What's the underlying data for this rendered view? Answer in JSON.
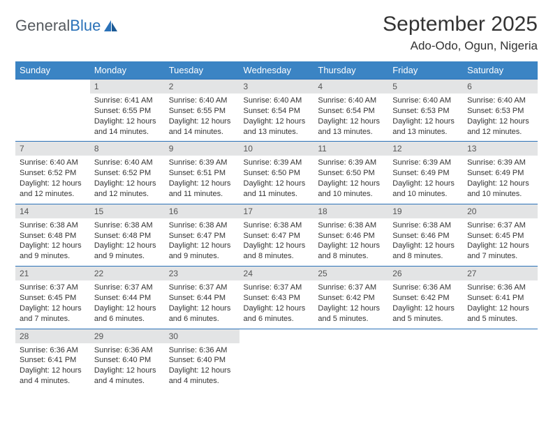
{
  "logo": {
    "text_gray": "General",
    "text_blue": "Blue"
  },
  "title": "September 2025",
  "location": "Ado-Odo, Ogun, Nigeria",
  "colors": {
    "header_bg": "#3b84c4",
    "header_text": "#ffffff",
    "daynum_bg": "#e3e4e5",
    "border": "#2a71b8",
    "body_text": "#333333",
    "logo_gray": "#555a5f",
    "logo_blue": "#2a71b8"
  },
  "day_headers": [
    "Sunday",
    "Monday",
    "Tuesday",
    "Wednesday",
    "Thursday",
    "Friday",
    "Saturday"
  ],
  "weeks": [
    [
      {
        "n": "",
        "sr": "",
        "ss": "",
        "dl": ""
      },
      {
        "n": "1",
        "sr": "Sunrise: 6:41 AM",
        "ss": "Sunset: 6:55 PM",
        "dl": "Daylight: 12 hours and 14 minutes."
      },
      {
        "n": "2",
        "sr": "Sunrise: 6:40 AM",
        "ss": "Sunset: 6:55 PM",
        "dl": "Daylight: 12 hours and 14 minutes."
      },
      {
        "n": "3",
        "sr": "Sunrise: 6:40 AM",
        "ss": "Sunset: 6:54 PM",
        "dl": "Daylight: 12 hours and 13 minutes."
      },
      {
        "n": "4",
        "sr": "Sunrise: 6:40 AM",
        "ss": "Sunset: 6:54 PM",
        "dl": "Daylight: 12 hours and 13 minutes."
      },
      {
        "n": "5",
        "sr": "Sunrise: 6:40 AM",
        "ss": "Sunset: 6:53 PM",
        "dl": "Daylight: 12 hours and 13 minutes."
      },
      {
        "n": "6",
        "sr": "Sunrise: 6:40 AM",
        "ss": "Sunset: 6:53 PM",
        "dl": "Daylight: 12 hours and 12 minutes."
      }
    ],
    [
      {
        "n": "7",
        "sr": "Sunrise: 6:40 AM",
        "ss": "Sunset: 6:52 PM",
        "dl": "Daylight: 12 hours and 12 minutes."
      },
      {
        "n": "8",
        "sr": "Sunrise: 6:40 AM",
        "ss": "Sunset: 6:52 PM",
        "dl": "Daylight: 12 hours and 12 minutes."
      },
      {
        "n": "9",
        "sr": "Sunrise: 6:39 AM",
        "ss": "Sunset: 6:51 PM",
        "dl": "Daylight: 12 hours and 11 minutes."
      },
      {
        "n": "10",
        "sr": "Sunrise: 6:39 AM",
        "ss": "Sunset: 6:50 PM",
        "dl": "Daylight: 12 hours and 11 minutes."
      },
      {
        "n": "11",
        "sr": "Sunrise: 6:39 AM",
        "ss": "Sunset: 6:50 PM",
        "dl": "Daylight: 12 hours and 10 minutes."
      },
      {
        "n": "12",
        "sr": "Sunrise: 6:39 AM",
        "ss": "Sunset: 6:49 PM",
        "dl": "Daylight: 12 hours and 10 minutes."
      },
      {
        "n": "13",
        "sr": "Sunrise: 6:39 AM",
        "ss": "Sunset: 6:49 PM",
        "dl": "Daylight: 12 hours and 10 minutes."
      }
    ],
    [
      {
        "n": "14",
        "sr": "Sunrise: 6:38 AM",
        "ss": "Sunset: 6:48 PM",
        "dl": "Daylight: 12 hours and 9 minutes."
      },
      {
        "n": "15",
        "sr": "Sunrise: 6:38 AM",
        "ss": "Sunset: 6:48 PM",
        "dl": "Daylight: 12 hours and 9 minutes."
      },
      {
        "n": "16",
        "sr": "Sunrise: 6:38 AM",
        "ss": "Sunset: 6:47 PM",
        "dl": "Daylight: 12 hours and 9 minutes."
      },
      {
        "n": "17",
        "sr": "Sunrise: 6:38 AM",
        "ss": "Sunset: 6:47 PM",
        "dl": "Daylight: 12 hours and 8 minutes."
      },
      {
        "n": "18",
        "sr": "Sunrise: 6:38 AM",
        "ss": "Sunset: 6:46 PM",
        "dl": "Daylight: 12 hours and 8 minutes."
      },
      {
        "n": "19",
        "sr": "Sunrise: 6:38 AM",
        "ss": "Sunset: 6:46 PM",
        "dl": "Daylight: 12 hours and 8 minutes."
      },
      {
        "n": "20",
        "sr": "Sunrise: 6:37 AM",
        "ss": "Sunset: 6:45 PM",
        "dl": "Daylight: 12 hours and 7 minutes."
      }
    ],
    [
      {
        "n": "21",
        "sr": "Sunrise: 6:37 AM",
        "ss": "Sunset: 6:45 PM",
        "dl": "Daylight: 12 hours and 7 minutes."
      },
      {
        "n": "22",
        "sr": "Sunrise: 6:37 AM",
        "ss": "Sunset: 6:44 PM",
        "dl": "Daylight: 12 hours and 6 minutes."
      },
      {
        "n": "23",
        "sr": "Sunrise: 6:37 AM",
        "ss": "Sunset: 6:44 PM",
        "dl": "Daylight: 12 hours and 6 minutes."
      },
      {
        "n": "24",
        "sr": "Sunrise: 6:37 AM",
        "ss": "Sunset: 6:43 PM",
        "dl": "Daylight: 12 hours and 6 minutes."
      },
      {
        "n": "25",
        "sr": "Sunrise: 6:37 AM",
        "ss": "Sunset: 6:42 PM",
        "dl": "Daylight: 12 hours and 5 minutes."
      },
      {
        "n": "26",
        "sr": "Sunrise: 6:36 AM",
        "ss": "Sunset: 6:42 PM",
        "dl": "Daylight: 12 hours and 5 minutes."
      },
      {
        "n": "27",
        "sr": "Sunrise: 6:36 AM",
        "ss": "Sunset: 6:41 PM",
        "dl": "Daylight: 12 hours and 5 minutes."
      }
    ],
    [
      {
        "n": "28",
        "sr": "Sunrise: 6:36 AM",
        "ss": "Sunset: 6:41 PM",
        "dl": "Daylight: 12 hours and 4 minutes."
      },
      {
        "n": "29",
        "sr": "Sunrise: 6:36 AM",
        "ss": "Sunset: 6:40 PM",
        "dl": "Daylight: 12 hours and 4 minutes."
      },
      {
        "n": "30",
        "sr": "Sunrise: 6:36 AM",
        "ss": "Sunset: 6:40 PM",
        "dl": "Daylight: 12 hours and 4 minutes."
      },
      {
        "n": "",
        "sr": "",
        "ss": "",
        "dl": ""
      },
      {
        "n": "",
        "sr": "",
        "ss": "",
        "dl": ""
      },
      {
        "n": "",
        "sr": "",
        "ss": "",
        "dl": ""
      },
      {
        "n": "",
        "sr": "",
        "ss": "",
        "dl": ""
      }
    ]
  ]
}
